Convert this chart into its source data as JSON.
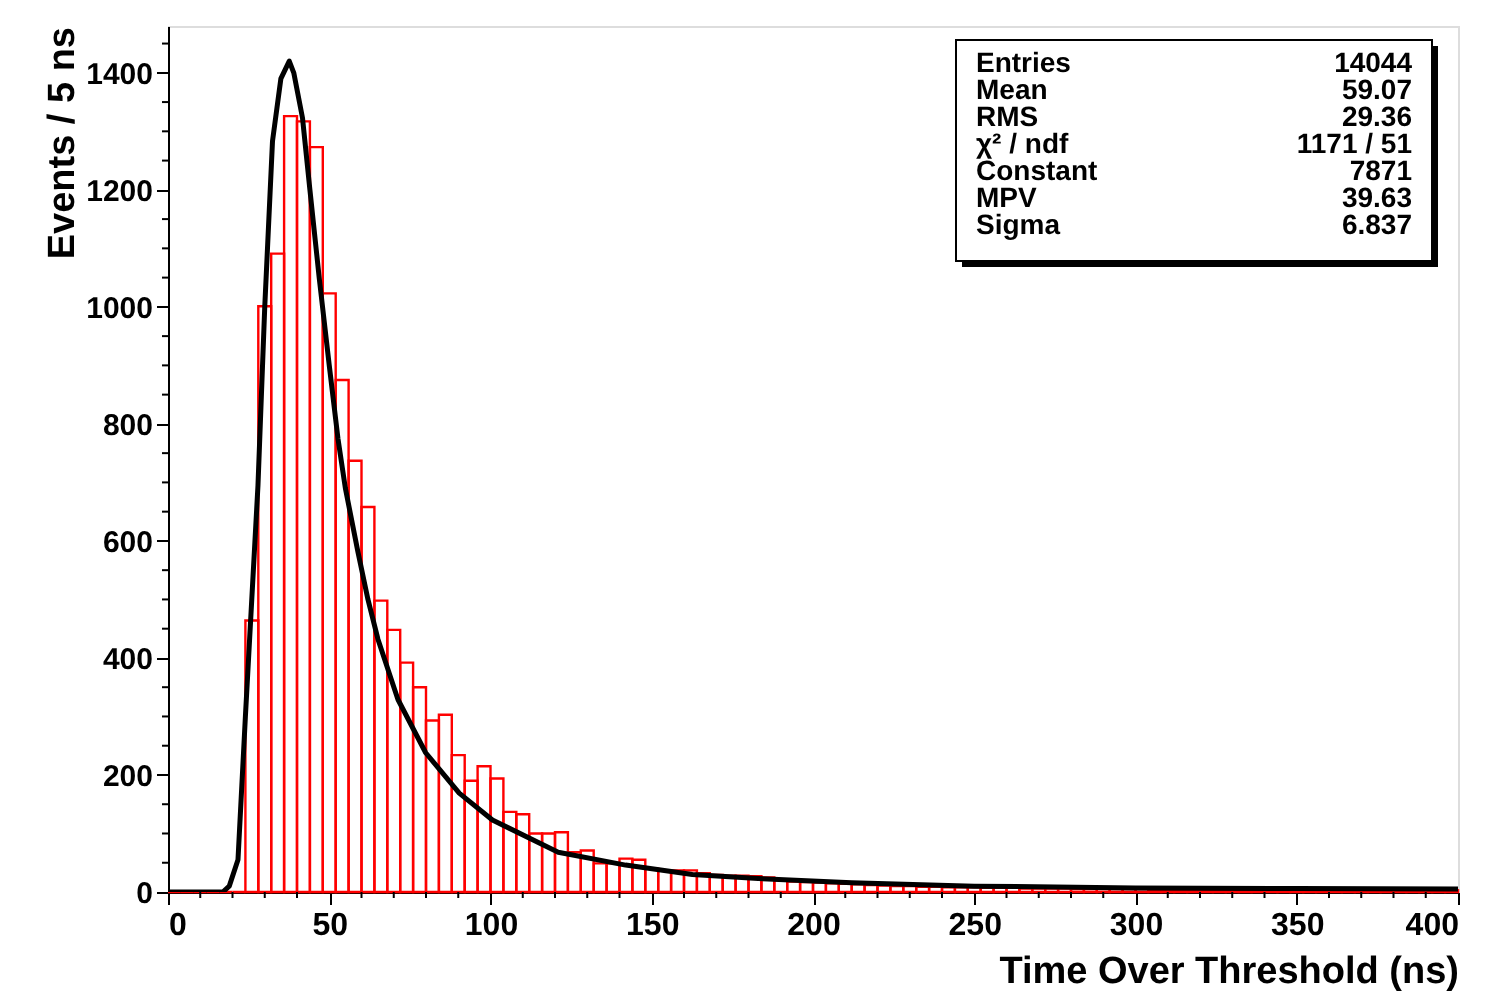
{
  "chart_data": {
    "type": "histogram",
    "xlabel": "Time Over Threshold (ns)",
    "ylabel": "Events / 5 ns",
    "color": "#ff0000",
    "bins": [
      0,
      4,
      8,
      12,
      16,
      20,
      24,
      28,
      32,
      36,
      40,
      44,
      48,
      52,
      56,
      60,
      64,
      68,
      72,
      76,
      80,
      84,
      88,
      92,
      96,
      100,
      104,
      108,
      112,
      116,
      120,
      124,
      128,
      132,
      136,
      140,
      144,
      148,
      152,
      156,
      160,
      164,
      168,
      172,
      176,
      180,
      184,
      188,
      192,
      196,
      200,
      204,
      208,
      212,
      216,
      220,
      224,
      228,
      232,
      236,
      240,
      244,
      248,
      252,
      256,
      260,
      264,
      268,
      272,
      276,
      280,
      284,
      288,
      292,
      296,
      300,
      304,
      308,
      312,
      316,
      320,
      324,
      328,
      332,
      336,
      340,
      344,
      348,
      352,
      356,
      360,
      364,
      368,
      372,
      376,
      380,
      384,
      388,
      392,
      396,
      400
    ],
    "values": [
      0,
      0,
      0,
      0,
      0,
      0,
      464,
      1001,
      1091,
      1326,
      1317,
      1273,
      1023,
      875,
      737,
      658,
      498,
      448,
      392,
      350,
      293,
      303,
      234,
      190,
      215,
      194,
      137,
      133,
      100,
      100,
      102,
      68,
      71,
      49,
      49,
      57,
      55,
      40,
      37,
      37,
      37,
      32,
      29,
      28,
      28,
      27,
      25,
      20,
      18,
      17,
      16,
      15,
      14,
      13,
      12,
      11,
      10,
      10,
      9,
      9,
      8,
      8,
      8,
      7,
      7,
      7,
      6,
      6,
      6,
      6,
      5,
      5,
      5,
      5,
      5,
      5,
      4,
      4,
      4,
      4,
      4,
      4,
      4,
      4,
      3,
      3,
      3,
      3,
      3,
      3,
      3,
      3,
      3,
      3,
      3,
      3,
      3,
      3,
      3,
      3
    ],
    "series": [
      {
        "type": "line",
        "color": "#000000",
        "x": [
          0,
          17,
          19,
          21.7,
          24,
          27.9,
          30,
          32.4,
          35,
          37.6,
          39,
          41.7,
          44,
          46.9,
          50,
          52.7,
          55,
          58.9,
          62,
          65.1,
          71.3,
          79.9,
          90.3,
          100.6,
          121,
          141.9,
          162.6,
          183,
          212,
          250,
          300,
          350,
          400
        ],
        "values": [
          0,
          0,
          10,
          55,
          300,
          695,
          1000,
          1283,
          1390,
          1420,
          1400,
          1323,
          1200,
          1049,
          900,
          775,
          690,
          581,
          500,
          432,
          329,
          238,
          169,
          123,
          68,
          46,
          30,
          23,
          16,
          10,
          7,
          6,
          5
        ]
      }
    ],
    "xlim": [
      0,
      400
    ],
    "xticks": [
      0,
      {
        "value": 10,
        "label": null
      },
      {
        "value": 20,
        "label": null
      },
      {
        "value": 30,
        "label": null
      },
      {
        "value": 40,
        "label": null
      },
      50,
      {
        "value": 60,
        "label": null
      },
      {
        "value": 70,
        "label": null
      },
      {
        "value": 80,
        "label": null
      },
      {
        "value": 90,
        "label": null
      },
      100,
      {
        "value": 110,
        "label": null
      },
      {
        "value": 120,
        "label": null
      },
      {
        "value": 130,
        "label": null
      },
      {
        "value": 140,
        "label": null
      },
      150,
      {
        "value": 160,
        "label": null
      },
      {
        "value": 170,
        "label": null
      },
      {
        "value": 180,
        "label": null
      },
      {
        "value": 190,
        "label": null
      },
      200,
      {
        "value": 210,
        "label": null
      },
      {
        "value": 220,
        "label": null
      },
      {
        "value": 230,
        "label": null
      },
      {
        "value": 240,
        "label": null
      },
      250,
      {
        "value": 260,
        "label": null
      },
      {
        "value": 270,
        "label": null
      },
      {
        "value": 280,
        "label": null
      },
      {
        "value": 290,
        "label": null
      },
      300,
      {
        "value": 310,
        "label": null
      },
      {
        "value": 320,
        "label": null
      },
      {
        "value": 330,
        "label": null
      },
      {
        "value": 340,
        "label": null
      },
      350,
      {
        "value": 360,
        "label": null
      },
      {
        "value": 370,
        "label": null
      },
      {
        "value": 380,
        "label": null
      },
      {
        "value": 390,
        "label": null
      },
      400
    ],
    "ylim": [
      0,
      1480
    ],
    "yticks": [
      0,
      {
        "value": 50,
        "label": null
      },
      {
        "value": 100,
        "label": null
      },
      {
        "value": 150,
        "label": null
      },
      200,
      {
        "value": 250,
        "label": null
      },
      {
        "value": 300,
        "label": null
      },
      {
        "value": 350,
        "label": null
      },
      400,
      {
        "value": 450,
        "label": null
      },
      {
        "value": 500,
        "label": null
      },
      {
        "value": 550,
        "label": null
      },
      600,
      {
        "value": 650,
        "label": null
      },
      {
        "value": 700,
        "label": null
      },
      {
        "value": 750,
        "label": null
      },
      800,
      {
        "value": 850,
        "label": null
      },
      {
        "value": 900,
        "label": null
      },
      {
        "value": 950,
        "label": null
      },
      1000,
      {
        "value": 1050,
        "label": null
      },
      {
        "value": 1100,
        "label": null
      },
      {
        "value": 1150,
        "label": null
      },
      1200,
      {
        "value": 1250,
        "label": null
      },
      {
        "value": 1300,
        "label": null
      },
      {
        "value": 1350,
        "label": null
      },
      1400,
      {
        "value": 1450,
        "label": null
      }
    ],
    "grid": false,
    "annotations": [
      "Entries",
      "14044",
      "Mean",
      "59.07",
      "RMS",
      "29.36",
      "χ² / ndf",
      "1171 / 51",
      "Constant",
      "7871",
      "MPV",
      "39.63",
      "Sigma",
      "6.837"
    ]
  }
}
